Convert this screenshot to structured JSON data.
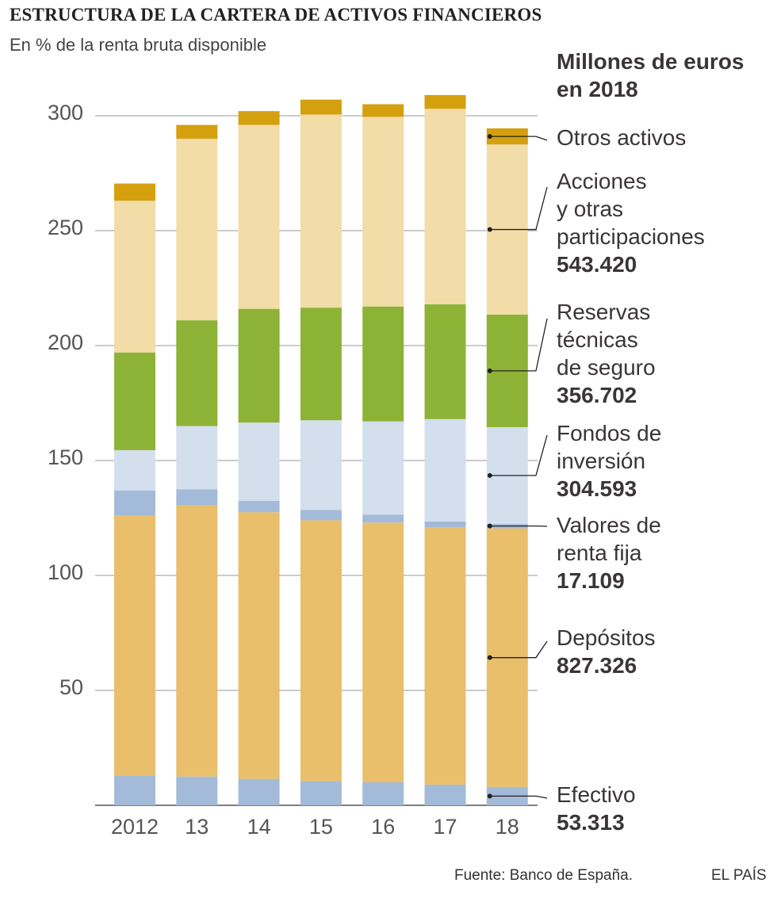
{
  "header": {
    "title": "ESTRUCTURA DE LA CARTERA DE ACTIVOS FINANCIEROS",
    "subtitle": "En % de la renta bruta disponible"
  },
  "legend_header": [
    "Millones de euros",
    "en 2018"
  ],
  "legend_items": [
    {
      "lines": [
        "Otros activos"
      ],
      "value": ""
    },
    {
      "lines": [
        "Acciones",
        "y otras",
        "participaciones"
      ],
      "value": "543.420"
    },
    {
      "lines": [
        "Reservas",
        "técnicas",
        "de seguro"
      ],
      "value": "356.702"
    },
    {
      "lines": [
        "Fondos de",
        "inversión"
      ],
      "value": "304.593"
    },
    {
      "lines": [
        "Valores de",
        "renta fija"
      ],
      "value": "17.109"
    },
    {
      "lines": [
        "Depósitos"
      ],
      "value": "827.326"
    },
    {
      "lines": [
        "Efectivo"
      ],
      "value": "53.313"
    }
  ],
  "footer": {
    "source": "Fuente: Banco de España.",
    "brand": "EL PAÍS"
  },
  "chart_data": {
    "type": "stacked_bar",
    "title": "ESTRUCTURA DE LA CARTERA DE ACTIVOS FINANCIEROS",
    "subtitle": "En % de la renta bruta disponible",
    "xlabel": "",
    "ylabel": "",
    "ylim": [
      0,
      300
    ],
    "yticks": [
      50,
      100,
      150,
      200,
      250,
      300
    ],
    "grid": true,
    "categories": [
      "2012",
      "13",
      "14",
      "15",
      "16",
      "17",
      "18"
    ],
    "series": [
      {
        "name": "Efectivo",
        "color": "#a3bbd9",
        "values": [
          13,
          12.5,
          11.5,
          10.5,
          10,
          9,
          8
        ]
      },
      {
        "name": "Depósitos",
        "color": "#e9bf6b",
        "values": [
          113,
          118,
          116,
          113.5,
          113,
          112,
          112.5
        ]
      },
      {
        "name": "Valores de renta fija",
        "color": "#a3bbd9",
        "values": [
          11,
          7,
          5,
          4.5,
          3.5,
          2.5,
          2
        ]
      },
      {
        "name": "Fondos de inversión",
        "color": "#d4dfee",
        "values": [
          17.5,
          27.5,
          34,
          39,
          40.5,
          44.5,
          42
        ]
      },
      {
        "name": "Reservas técnicas de seguro",
        "color": "#8db336",
        "values": [
          42.5,
          46,
          49.5,
          49,
          50,
          50,
          49
        ]
      },
      {
        "name": "Acciones y otras participaciones",
        "color": "#f2dca8",
        "values": [
          66,
          79,
          80,
          84,
          82.5,
          85,
          74
        ]
      },
      {
        "name": "Otros activos",
        "color": "#d4a00e",
        "values": [
          7.5,
          6,
          6,
          6.5,
          5.5,
          6,
          7
        ]
      }
    ]
  }
}
